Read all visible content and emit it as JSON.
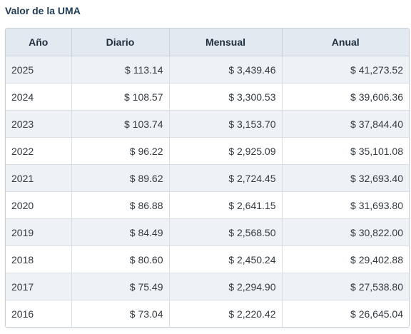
{
  "title": "Valor de la UMA",
  "table": {
    "headers": [
      "Año",
      "Diario",
      "Mensual",
      "Anual"
    ],
    "rows": [
      [
        "2025",
        "$ 113.14",
        "$ 3,439.46",
        "$ 41,273.52"
      ],
      [
        "2024",
        "$ 108.57",
        "$ 3,300.53",
        "$ 39,606.36"
      ],
      [
        "2023",
        "$ 103.74",
        "$ 3,153.70",
        "$ 37,844.40"
      ],
      [
        "2022",
        "$ 96.22",
        "$ 2,925.09",
        "$ 35,101.08"
      ],
      [
        "2021",
        "$ 89.62",
        "$ 2,724.45",
        "$ 32,693.40"
      ],
      [
        "2020",
        "$ 86.88",
        "$ 2,641.15",
        "$ 31,693.80"
      ],
      [
        "2019",
        "$ 84.49",
        "$ 2,568.50",
        "$ 30,822.00"
      ],
      [
        "2018",
        "$ 80.60",
        "$ 2,450.24",
        "$ 29,402.88"
      ],
      [
        "2017",
        "$ 75.49",
        "$ 2,294.90",
        "$ 27,538.80"
      ],
      [
        "2016",
        "$ 73.04",
        "$ 2,220.42",
        "$ 26,645.04"
      ]
    ]
  }
}
